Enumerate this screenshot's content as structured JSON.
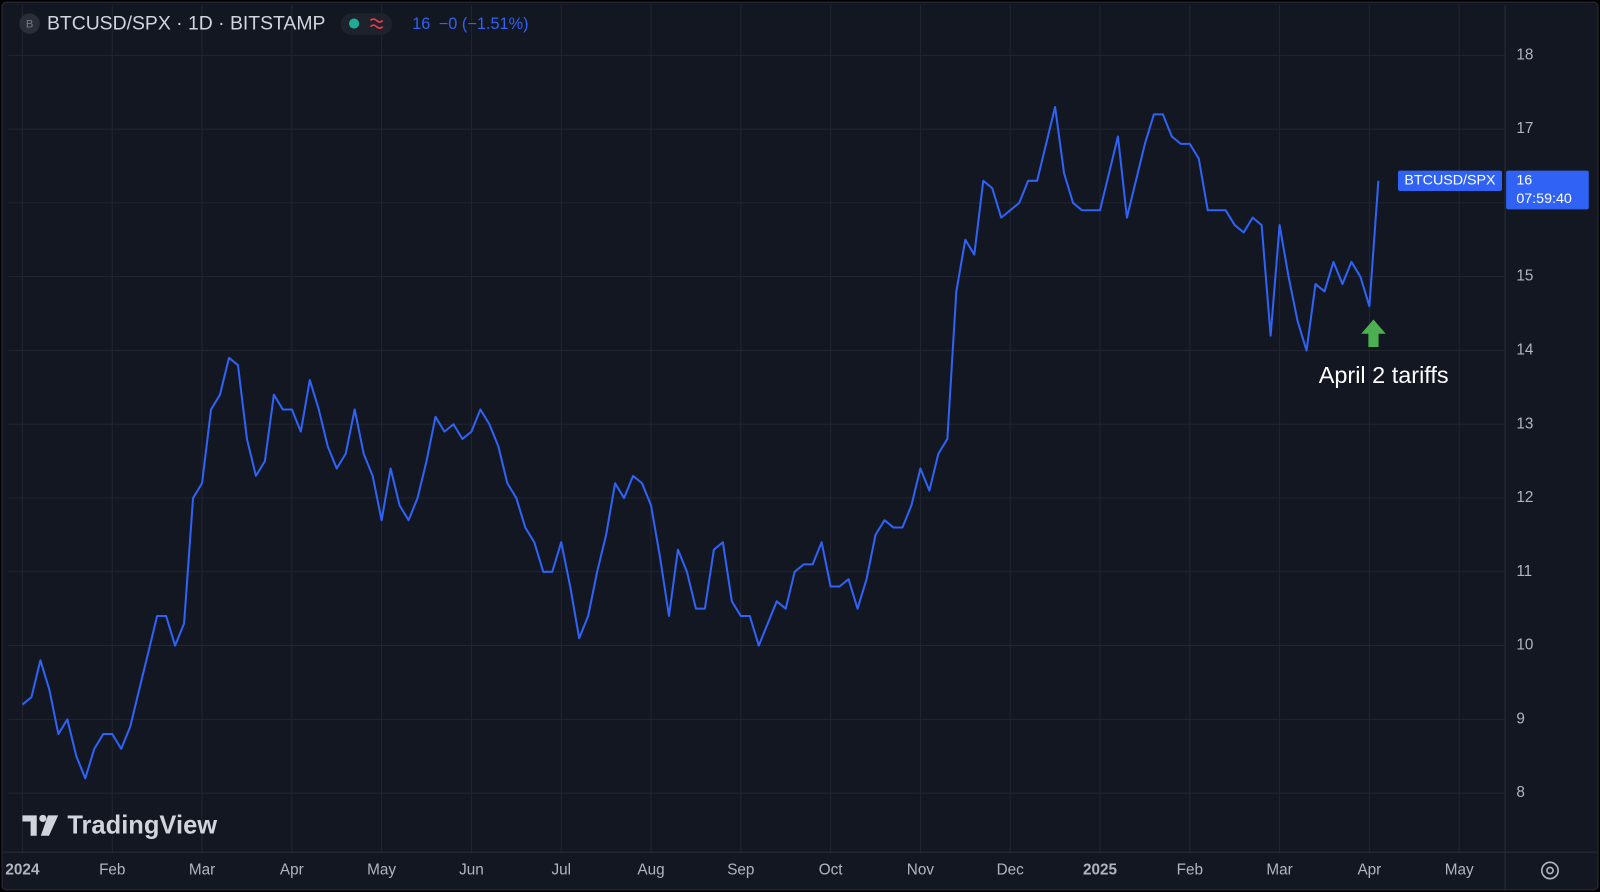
{
  "chart_data": {
    "type": "line",
    "title": "BTCUSD/SPX · 1D · BITSTAMP",
    "symbol_icon": "B",
    "last_value": 16,
    "change": "−0 (−1.51%)",
    "countdown": "07:59:40",
    "annotation": "April 2 tariffs",
    "watermark": "TradingView",
    "categories": [
      "2024",
      null,
      null,
      null,
      null,
      null,
      null,
      null,
      null,
      null,
      "Feb",
      null,
      null,
      null,
      null,
      null,
      null,
      null,
      null,
      null,
      "Mar",
      null,
      null,
      null,
      null,
      null,
      null,
      null,
      null,
      null,
      "Apr",
      null,
      null,
      null,
      null,
      null,
      null,
      null,
      null,
      null,
      "May",
      null,
      null,
      null,
      null,
      null,
      null,
      null,
      null,
      null,
      "Jun",
      null,
      null,
      null,
      null,
      null,
      null,
      null,
      null,
      null,
      "Jul",
      null,
      null,
      null,
      null,
      null,
      null,
      null,
      null,
      null,
      "Aug",
      null,
      null,
      null,
      null,
      null,
      null,
      null,
      null,
      null,
      "Sep",
      null,
      null,
      null,
      null,
      null,
      null,
      null,
      null,
      null,
      "Oct",
      null,
      null,
      null,
      null,
      null,
      null,
      null,
      null,
      null,
      "Nov",
      null,
      null,
      null,
      null,
      null,
      null,
      null,
      null,
      null,
      "Dec",
      null,
      null,
      null,
      null,
      null,
      null,
      null,
      null,
      null,
      "2025",
      null,
      null,
      null,
      null,
      null,
      null,
      null,
      null,
      null,
      "Feb",
      null,
      null,
      null,
      null,
      null,
      null,
      null,
      null,
      null,
      "Mar",
      null,
      null,
      null,
      null,
      null,
      null,
      null,
      null,
      null,
      "Apr",
      null,
      null,
      null,
      null,
      null,
      null,
      null,
      null,
      null,
      "May"
    ],
    "series": [
      {
        "name": "BTCUSD/SPX",
        "color": "#2f62f5",
        "values": [
          9.2,
          9.3,
          9.8,
          9.4,
          8.8,
          9.0,
          8.5,
          8.2,
          8.6,
          8.8,
          8.8,
          8.6,
          8.9,
          9.4,
          9.9,
          10.4,
          10.4,
          10.0,
          10.3,
          12.0,
          12.2,
          13.2,
          13.4,
          13.9,
          13.8,
          12.8,
          12.3,
          12.5,
          13.4,
          13.2,
          13.2,
          12.9,
          13.6,
          13.2,
          12.7,
          12.4,
          12.6,
          13.2,
          12.6,
          12.3,
          11.7,
          12.4,
          11.9,
          11.7,
          12.0,
          12.5,
          13.1,
          12.9,
          13.0,
          12.8,
          12.9,
          13.2,
          13.0,
          12.7,
          12.2,
          12.0,
          11.6,
          11.4,
          11.0,
          11.0,
          11.4,
          10.8,
          10.1,
          10.4,
          11.0,
          11.5,
          12.2,
          12.0,
          12.3,
          12.2,
          11.9,
          11.2,
          10.4,
          11.3,
          11.0,
          10.5,
          10.5,
          11.3,
          11.4,
          10.6,
          10.4,
          10.4,
          10.0,
          10.3,
          10.6,
          10.5,
          11.0,
          11.1,
          11.1,
          11.4,
          10.8,
          10.8,
          10.9,
          10.5,
          10.9,
          11.5,
          11.7,
          11.6,
          11.6,
          11.9,
          12.4,
          12.1,
          12.6,
          12.8,
          14.8,
          15.5,
          15.3,
          16.3,
          16.2,
          15.8,
          15.9,
          16.0,
          16.3,
          16.3,
          16.8,
          17.3,
          16.4,
          16.0,
          15.9,
          15.9,
          15.9,
          16.4,
          16.9,
          15.8,
          16.3,
          16.8,
          17.2,
          17.2,
          16.9,
          16.8,
          16.8,
          16.6,
          15.9,
          15.9,
          15.9,
          15.7,
          15.6,
          15.8,
          15.7,
          14.2,
          15.7,
          15.0,
          14.4,
          14.0,
          14.9,
          14.8,
          15.2,
          14.9,
          15.2,
          15.0,
          14.6,
          16.3,
          null,
          null,
          null,
          null,
          null,
          null,
          null,
          null,
          null
        ]
      }
    ],
    "ylim": [
      7.2,
      18.68
    ],
    "yticks": [
      8,
      9,
      10,
      11,
      12,
      13,
      14,
      15,
      16,
      17,
      18
    ],
    "grid": true
  }
}
